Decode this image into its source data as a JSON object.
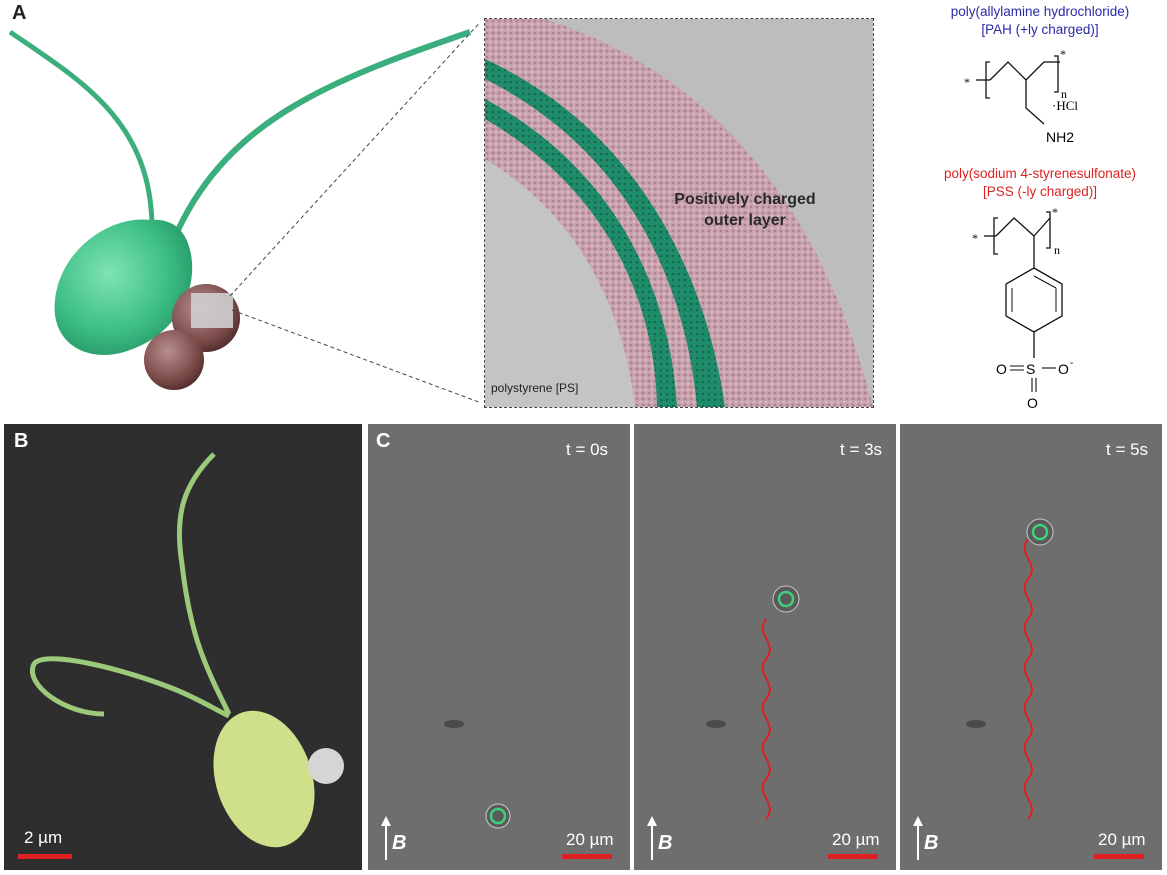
{
  "panels": {
    "a": {
      "letter": "A",
      "inset_text": "Positively charged outer layer",
      "inset_text_line1": "Positively charged",
      "inset_text_line2": "outer layer",
      "substrate_label": "polystyrene [PS]",
      "pah_name": "poly(allylamine hydrochloride)",
      "pah_desc": "[PAH (+ly charged)]",
      "pss_name": "poly(sodium 4-styrenesulfonate)",
      "pss_desc": "[PSS (-ly charged)]",
      "pah_hcl": "·HCl",
      "pah_nh2": "NH2",
      "pss_so3": "O=S=O O-",
      "colors": {
        "pah": "#2a2aa8",
        "pss": "#dd2222",
        "cell": "#3dbf86",
        "shell": "#c9a2ad"
      }
    },
    "b": {
      "letter": "B",
      "scale": "2 µm"
    },
    "c": {
      "letter": "C",
      "frames": [
        {
          "time": "t = 0s",
          "scale": "20 µm",
          "field": "B"
        },
        {
          "time": "t = 3s",
          "scale": "20 µm",
          "field": "B"
        },
        {
          "time": "t = 5s",
          "scale": "20 µm",
          "field": "B"
        }
      ]
    }
  }
}
